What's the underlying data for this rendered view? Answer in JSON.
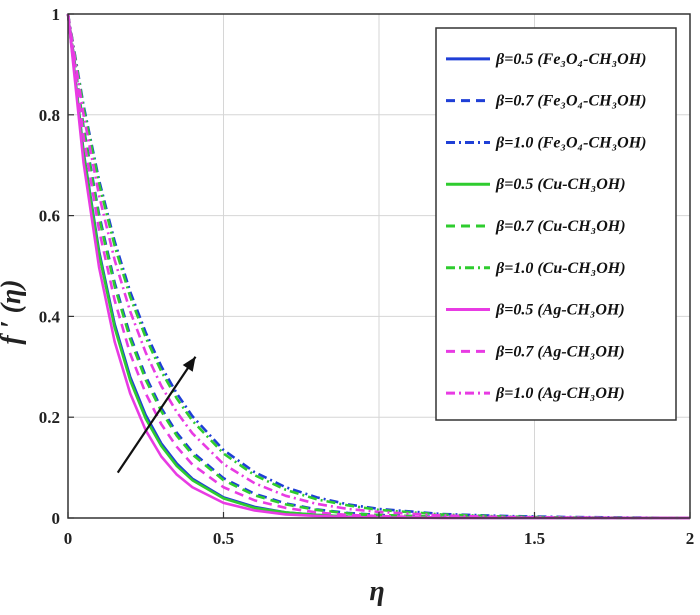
{
  "chart_data": {
    "type": "line",
    "title": "",
    "xlabel": "η",
    "ylabel": "f ′ (η)",
    "xlim": [
      0,
      2
    ],
    "ylim": [
      0,
      1
    ],
    "grid": true,
    "legend_position": "top-right",
    "x_ticks": [
      "0",
      "0.5",
      "1",
      "1.5",
      "2"
    ],
    "y_ticks": [
      "0",
      "0.2",
      "0.4",
      "0.6",
      "0.8",
      "1"
    ],
    "x": [
      0,
      0.05,
      0.1,
      0.15,
      0.2,
      0.25,
      0.3,
      0.35,
      0.4,
      0.5,
      0.6,
      0.7,
      0.8,
      0.9,
      1.0,
      1.2,
      1.4,
      1.6,
      1.8,
      2.0
    ],
    "series": [
      {
        "name": "β=0.5 (Fe₃O₄-CH₃OH)",
        "color": "#1f3fd6",
        "dash": "solid",
        "values": [
          1.0,
          0.727,
          0.529,
          0.385,
          0.28,
          0.204,
          0.148,
          0.108,
          0.078,
          0.041,
          0.022,
          0.011,
          0.006,
          0.003,
          0.002,
          0.0005,
          0.0002,
          0.0,
          0.0,
          0.0
        ]
      },
      {
        "name": "β=0.7 (Fe₃O₄-CH₃OH)",
        "color": "#1f3fd6",
        "dash": "dash",
        "values": [
          1.0,
          0.776,
          0.602,
          0.467,
          0.362,
          0.281,
          0.218,
          0.169,
          0.131,
          0.079,
          0.048,
          0.029,
          0.017,
          0.01,
          0.006,
          0.002,
          0.001,
          0.0003,
          0.0001,
          0.0
        ]
      },
      {
        "name": "β=1.0 (Fe₃O₄-CH₃OH)",
        "color": "#1f3fd6",
        "dash": "dashdot",
        "values": [
          1.0,
          0.819,
          0.67,
          0.549,
          0.449,
          0.368,
          0.301,
          0.247,
          0.202,
          0.135,
          0.091,
          0.061,
          0.041,
          0.027,
          0.018,
          0.008,
          0.004,
          0.002,
          0.001,
          0.0
        ]
      },
      {
        "name": "β=0.5 (Cu-CH₃OH)",
        "color": "#2ecc2e",
        "dash": "solid",
        "values": [
          1.0,
          0.723,
          0.523,
          0.378,
          0.273,
          0.197,
          0.143,
          0.103,
          0.075,
          0.039,
          0.02,
          0.011,
          0.006,
          0.003,
          0.002,
          0.0004,
          0.0001,
          0.0,
          0.0,
          0.0
        ]
      },
      {
        "name": "β=0.7 (Cu-CH₃OH)",
        "color": "#2ecc2e",
        "dash": "dash",
        "values": [
          1.0,
          0.772,
          0.596,
          0.46,
          0.355,
          0.274,
          0.212,
          0.163,
          0.126,
          0.075,
          0.045,
          0.027,
          0.016,
          0.009,
          0.006,
          0.002,
          0.001,
          0.0002,
          0.0001,
          0.0
        ]
      },
      {
        "name": "β=1.0 (Cu-CH₃OH)",
        "color": "#2ecc2e",
        "dash": "dashdot",
        "values": [
          1.0,
          0.814,
          0.663,
          0.54,
          0.439,
          0.358,
          0.291,
          0.237,
          0.193,
          0.128,
          0.085,
          0.056,
          0.037,
          0.025,
          0.016,
          0.007,
          0.003,
          0.001,
          0.0005,
          0.0
        ]
      },
      {
        "name": "β=0.5 (Ag-CH₃OH)",
        "color": "#e83be3",
        "dash": "solid",
        "values": [
          1.0,
          0.705,
          0.497,
          0.35,
          0.247,
          0.174,
          0.122,
          0.086,
          0.061,
          0.03,
          0.015,
          0.007,
          0.004,
          0.002,
          0.001,
          0.0002,
          0.0,
          0.0,
          0.0,
          0.0
        ]
      },
      {
        "name": "β=0.7 (Ag-CH₃OH)",
        "color": "#e83be3",
        "dash": "dash",
        "values": [
          1.0,
          0.756,
          0.571,
          0.432,
          0.326,
          0.247,
          0.186,
          0.141,
          0.106,
          0.061,
          0.035,
          0.02,
          0.011,
          0.006,
          0.004,
          0.001,
          0.0004,
          0.0001,
          0.0,
          0.0
        ]
      },
      {
        "name": "β=1.0 (Ag-CH₃OH)",
        "color": "#e83be3",
        "dash": "dashdot",
        "values": [
          1.0,
          0.8,
          0.64,
          0.512,
          0.41,
          0.328,
          0.262,
          0.21,
          0.168,
          0.107,
          0.069,
          0.044,
          0.028,
          0.018,
          0.012,
          0.005,
          0.002,
          0.001,
          0.0003,
          0.0
        ]
      }
    ],
    "annotation": {
      "type": "arrow",
      "from": [
        0.16,
        0.09
      ],
      "to": [
        0.41,
        0.32
      ],
      "color": "#111111"
    }
  }
}
